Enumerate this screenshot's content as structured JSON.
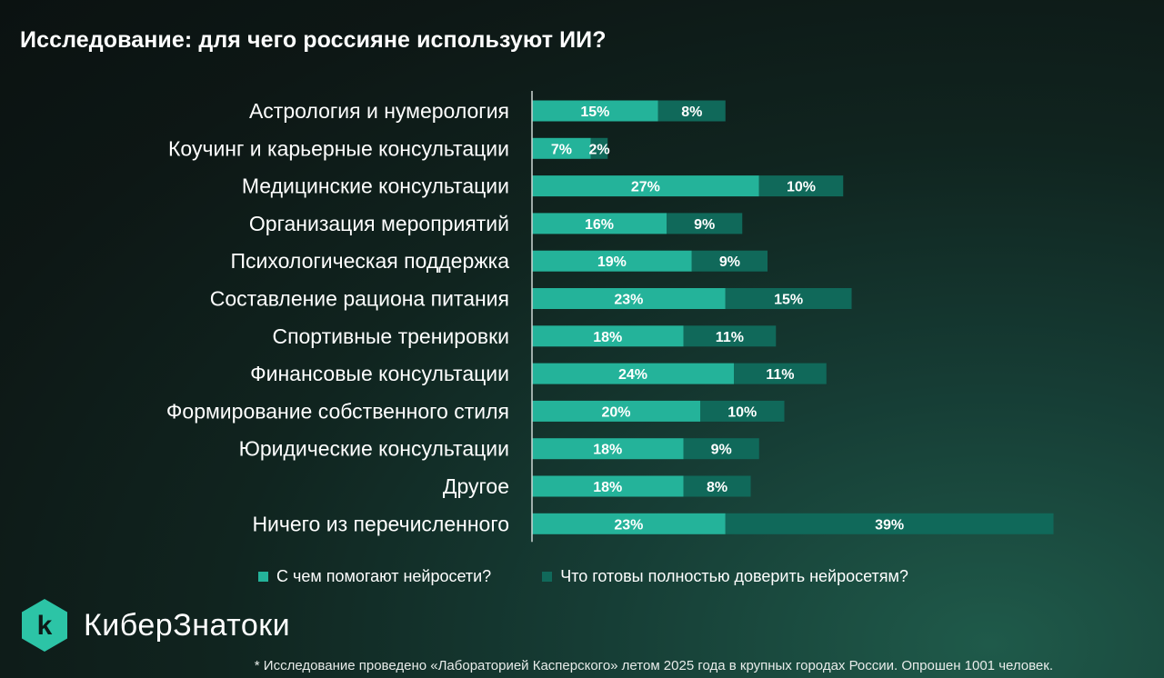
{
  "title": "Исследование: для чего россияне используют ИИ?",
  "colors": {
    "primary": "#24b39a",
    "secondary": "#10695a",
    "axis": "#cfd8d5"
  },
  "legend": [
    {
      "label": "С чем помогают нейросети?",
      "color": "#24b39a"
    },
    {
      "label": "Что готовы полностью доверить нейросетям?",
      "color": "#10695a"
    }
  ],
  "logo": {
    "text": "КиберЗнатоки",
    "icon": "k-hexagon-logo",
    "letter": "k"
  },
  "footnote": "* Исследование проведено «Лабораторией Касперского» летом 2025 года в крупных городах России. Опрошен 1001 человек.",
  "chart_data": {
    "type": "bar",
    "orientation": "horizontal",
    "stacked": true,
    "title": "Исследование: для чего россияне используют ИИ?",
    "unit": "%",
    "categories": [
      "Астрология и нумерология",
      "Коучинг и карьерные консультации",
      "Медицинские консультации",
      "Организация мероприятий",
      "Психологическая поддержка",
      "Составление рациона питания",
      "Спортивные тренировки",
      "Финансовые консультации",
      "Формирование собственного стиля",
      "Юридические консультации",
      "Другое",
      "Ничего из перечисленного"
    ],
    "series": [
      {
        "name": "С чем помогают нейросети?",
        "values": [
          15,
          7,
          27,
          16,
          19,
          23,
          18,
          24,
          20,
          18,
          18,
          23
        ]
      },
      {
        "name": "Что готовы полностью доверить нейросетям?",
        "values": [
          8,
          2,
          10,
          9,
          9,
          15,
          11,
          11,
          10,
          9,
          8,
          39
        ]
      }
    ],
    "legend_position": "bottom",
    "grid": false
  }
}
